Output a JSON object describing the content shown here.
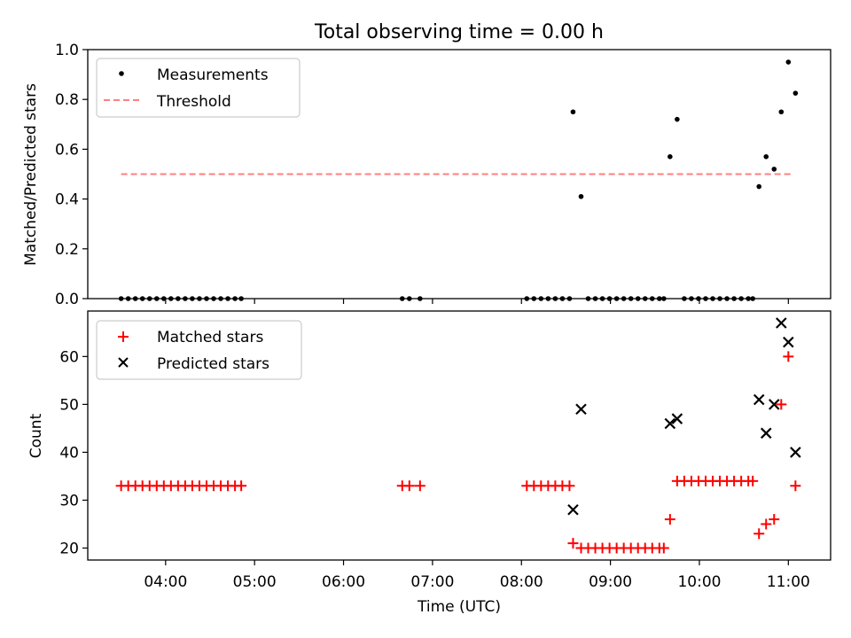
{
  "chart_data": {
    "title": "Total observing time = 0.00 h",
    "x_axis": {
      "label": "Time (UTC)",
      "unit": "hours UTC",
      "range": [
        3.125,
        11.475
      ],
      "ticks": [
        4,
        5,
        6,
        7,
        8,
        9,
        10,
        11
      ],
      "tick_labels": [
        "04:00",
        "05:00",
        "06:00",
        "07:00",
        "08:00",
        "09:00",
        "10:00",
        "11:00"
      ]
    },
    "panels": [
      {
        "type": "scatter",
        "ylabel": "Matched/Predicted stars",
        "ylim": [
          0.0,
          1.0
        ],
        "yticks": [
          0.0,
          0.2,
          0.4,
          0.6,
          0.8,
          1.0
        ],
        "ytick_labels": [
          "0.0",
          "0.2",
          "0.4",
          "0.6",
          "0.8",
          "1.0"
        ],
        "legend": {
          "position": "top-left",
          "entries": [
            "Measurements",
            "Threshold"
          ]
        },
        "series": [
          {
            "name": "Measurements",
            "marker": "dot",
            "color": "#000000",
            "points": [
              [
                3.5,
                0
              ],
              [
                3.58,
                0
              ],
              [
                3.66,
                0
              ],
              [
                3.74,
                0
              ],
              [
                3.82,
                0
              ],
              [
                3.9,
                0
              ],
              [
                3.98,
                0
              ],
              [
                4.06,
                0
              ],
              [
                4.14,
                0
              ],
              [
                4.22,
                0
              ],
              [
                4.3,
                0
              ],
              [
                4.38,
                0
              ],
              [
                4.46,
                0
              ],
              [
                4.54,
                0
              ],
              [
                4.62,
                0
              ],
              [
                4.7,
                0
              ],
              [
                4.78,
                0
              ],
              [
                4.85,
                0
              ],
              [
                6.66,
                0
              ],
              [
                6.74,
                0
              ],
              [
                6.86,
                0
              ],
              [
                8.06,
                0
              ],
              [
                8.14,
                0
              ],
              [
                8.22,
                0
              ],
              [
                8.3,
                0
              ],
              [
                8.38,
                0
              ],
              [
                8.46,
                0
              ],
              [
                8.54,
                0
              ],
              [
                8.58,
                0.75
              ],
              [
                8.67,
                0.41
              ],
              [
                8.75,
                0
              ],
              [
                8.83,
                0
              ],
              [
                8.91,
                0
              ],
              [
                8.99,
                0
              ],
              [
                9.07,
                0
              ],
              [
                9.15,
                0
              ],
              [
                9.23,
                0
              ],
              [
                9.31,
                0
              ],
              [
                9.39,
                0
              ],
              [
                9.47,
                0
              ],
              [
                9.55,
                0
              ],
              [
                9.6,
                0
              ],
              [
                9.67,
                0.57
              ],
              [
                9.75,
                0.72
              ],
              [
                9.83,
                0
              ],
              [
                9.91,
                0
              ],
              [
                9.99,
                0
              ],
              [
                10.07,
                0
              ],
              [
                10.15,
                0
              ],
              [
                10.23,
                0
              ],
              [
                10.31,
                0
              ],
              [
                10.39,
                0
              ],
              [
                10.47,
                0
              ],
              [
                10.55,
                0
              ],
              [
                10.6,
                0
              ],
              [
                10.67,
                0.45
              ],
              [
                10.75,
                0.57
              ],
              [
                10.84,
                0.52
              ],
              [
                10.92,
                0.75
              ],
              [
                11.0,
                0.95
              ],
              [
                11.08,
                0.825
              ]
            ]
          },
          {
            "name": "Threshold",
            "line_style": "dashed",
            "color": "#ff7f7f",
            "x": [
              3.5,
              11.05
            ],
            "y": [
              0.5,
              0.5
            ]
          }
        ]
      },
      {
        "type": "scatter",
        "ylabel": "Count",
        "ylim": [
          17.5,
          69.5
        ],
        "yticks": [
          20,
          30,
          40,
          50,
          60
        ],
        "ytick_labels": [
          "20",
          "30",
          "40",
          "50",
          "60"
        ],
        "legend": {
          "position": "top-left",
          "entries": [
            "Matched stars",
            "Predicted stars"
          ]
        },
        "series": [
          {
            "name": "Matched stars",
            "marker": "plus",
            "color": "#ff0000",
            "points": [
              [
                3.5,
                33
              ],
              [
                3.58,
                33
              ],
              [
                3.66,
                33
              ],
              [
                3.74,
                33
              ],
              [
                3.82,
                33
              ],
              [
                3.9,
                33
              ],
              [
                3.98,
                33
              ],
              [
                4.06,
                33
              ],
              [
                4.14,
                33
              ],
              [
                4.22,
                33
              ],
              [
                4.3,
                33
              ],
              [
                4.38,
                33
              ],
              [
                4.46,
                33
              ],
              [
                4.54,
                33
              ],
              [
                4.62,
                33
              ],
              [
                4.7,
                33
              ],
              [
                4.78,
                33
              ],
              [
                4.85,
                33
              ],
              [
                6.66,
                33
              ],
              [
                6.74,
                33
              ],
              [
                6.86,
                33
              ],
              [
                8.06,
                33
              ],
              [
                8.14,
                33
              ],
              [
                8.22,
                33
              ],
              [
                8.3,
                33
              ],
              [
                8.38,
                33
              ],
              [
                8.46,
                33
              ],
              [
                8.54,
                33
              ],
              [
                8.58,
                21
              ],
              [
                8.67,
                20
              ],
              [
                8.75,
                20
              ],
              [
                8.83,
                20
              ],
              [
                8.91,
                20
              ],
              [
                8.99,
                20
              ],
              [
                9.07,
                20
              ],
              [
                9.15,
                20
              ],
              [
                9.23,
                20
              ],
              [
                9.31,
                20
              ],
              [
                9.39,
                20
              ],
              [
                9.47,
                20
              ],
              [
                9.55,
                20
              ],
              [
                9.6,
                20
              ],
              [
                9.67,
                26
              ],
              [
                9.75,
                34
              ],
              [
                9.83,
                34
              ],
              [
                9.91,
                34
              ],
              [
                9.99,
                34
              ],
              [
                10.07,
                34
              ],
              [
                10.15,
                34
              ],
              [
                10.23,
                34
              ],
              [
                10.31,
                34
              ],
              [
                10.39,
                34
              ],
              [
                10.47,
                34
              ],
              [
                10.55,
                34
              ],
              [
                10.6,
                34
              ],
              [
                10.67,
                23
              ],
              [
                10.75,
                25
              ],
              [
                10.84,
                26
              ],
              [
                10.92,
                50
              ],
              [
                11.0,
                60
              ],
              [
                11.08,
                33
              ]
            ]
          },
          {
            "name": "Predicted stars",
            "marker": "x",
            "color": "#000000",
            "points": [
              [
                8.58,
                28
              ],
              [
                8.67,
                49
              ],
              [
                9.67,
                46
              ],
              [
                9.75,
                47
              ],
              [
                10.67,
                51
              ],
              [
                10.75,
                44
              ],
              [
                10.84,
                50
              ],
              [
                10.92,
                67
              ],
              [
                11.0,
                63
              ],
              [
                11.08,
                40
              ]
            ]
          }
        ]
      }
    ]
  }
}
